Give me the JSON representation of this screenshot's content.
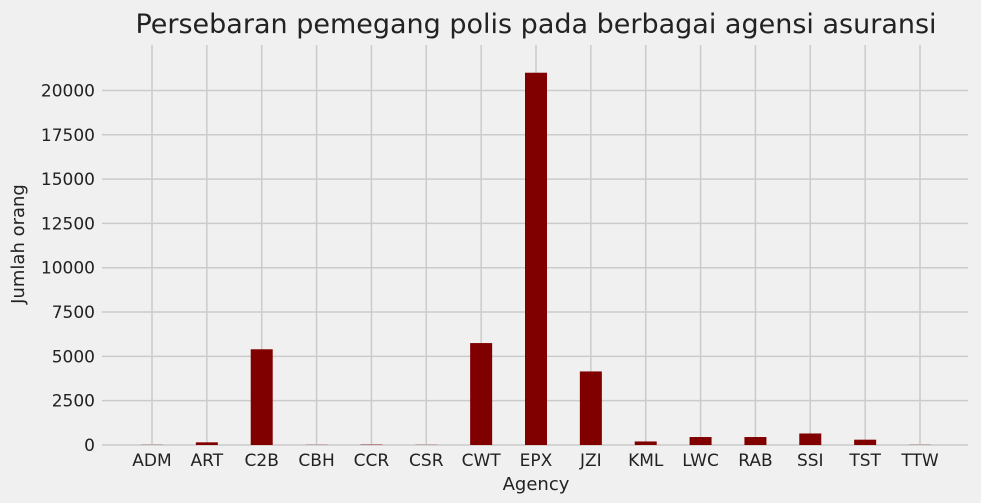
{
  "chart_data": {
    "type": "bar",
    "title": "Persebaran pemegang polis pada berbagai agensi asuransi",
    "xlabel": "Agency",
    "ylabel": "Jumlah orang",
    "categories": [
      "ADM",
      "ART",
      "C2B",
      "CBH",
      "CCR",
      "CSR",
      "CWT",
      "EPX",
      "JZI",
      "KML",
      "LWC",
      "RAB",
      "SSI",
      "TST",
      "TTW"
    ],
    "values": [
      10,
      150,
      5400,
      10,
      20,
      10,
      5750,
      21000,
      4150,
      200,
      450,
      450,
      650,
      300,
      10
    ],
    "ylim": [
      0,
      22000
    ],
    "yticks": [
      0,
      2500,
      5000,
      7500,
      10000,
      12500,
      15000,
      17500,
      20000
    ],
    "bar_color": "#800000",
    "grid": true
  }
}
